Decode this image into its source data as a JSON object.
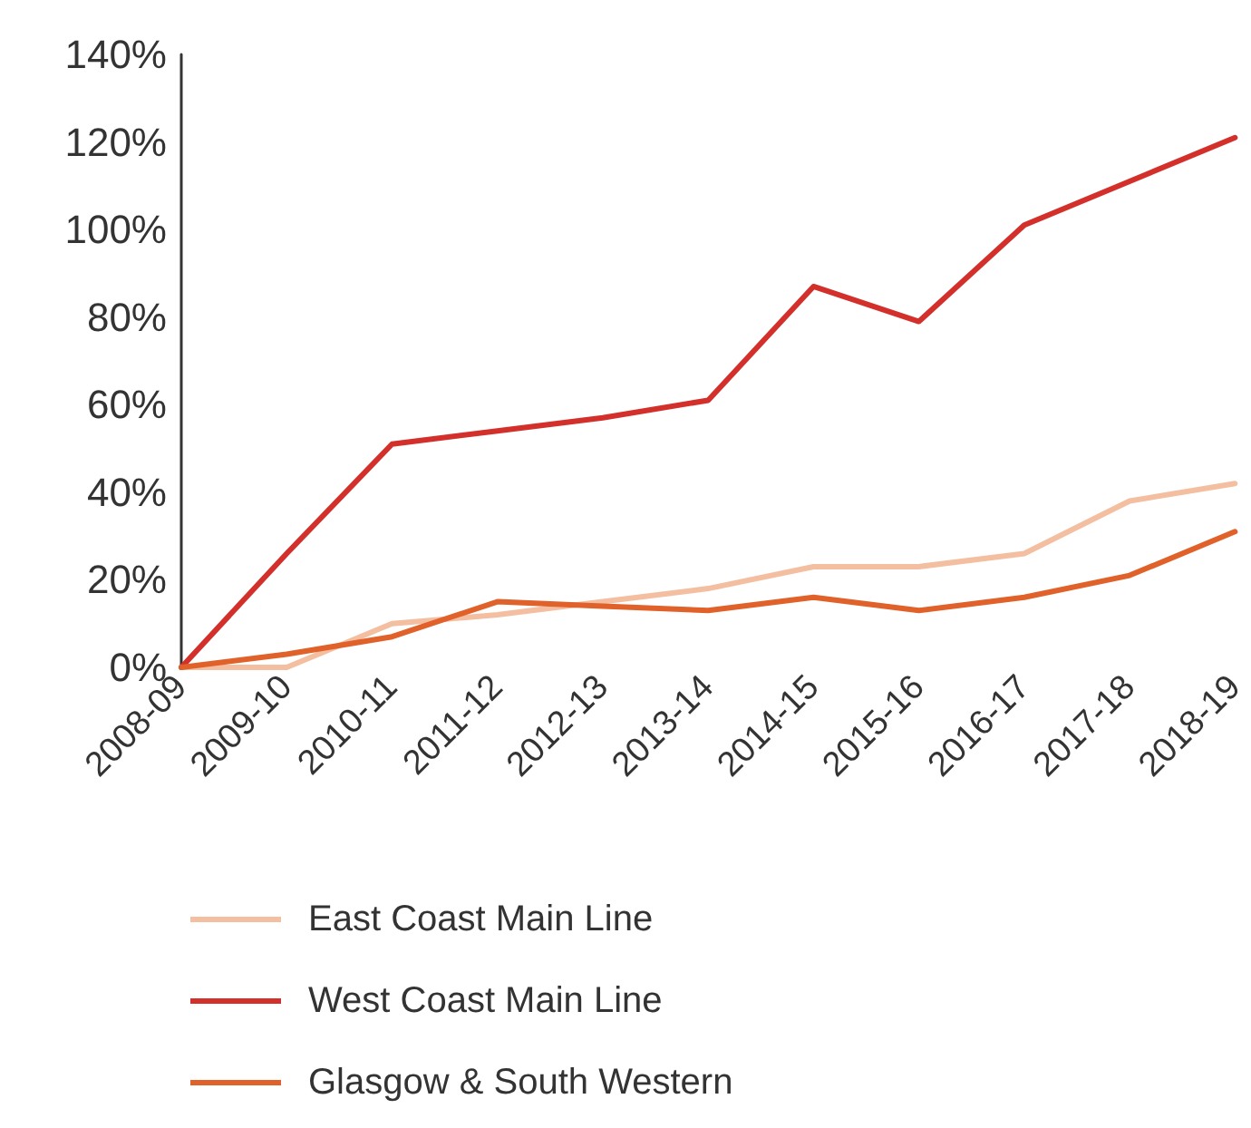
{
  "chart_data": {
    "type": "line",
    "categories": [
      "2008-09",
      "2009-10",
      "2010-11",
      "2011-12",
      "2012-13",
      "2013-14",
      "2014-15",
      "2015-16",
      "2016-17",
      "2017-18",
      "2018-19"
    ],
    "series": [
      {
        "name": "East Coast Main Line",
        "color": "#f4bfa1",
        "values": [
          0,
          0,
          10,
          12,
          15,
          18,
          23,
          23,
          26,
          38,
          42
        ]
      },
      {
        "name": "West Coast Main Line",
        "color": "#d3302b",
        "values": [
          0,
          26,
          51,
          54,
          57,
          61,
          87,
          79,
          101,
          111,
          121
        ]
      },
      {
        "name": "Glasgow & South Western",
        "color": "#e0612a",
        "values": [
          0,
          3,
          7,
          15,
          14,
          13,
          16,
          13,
          16,
          21,
          31
        ]
      }
    ],
    "ylim": [
      0,
      140
    ],
    "yticks": [
      {
        "value": 0,
        "label": "0%"
      },
      {
        "value": 20,
        "label": "20%"
      },
      {
        "value": 40,
        "label": "40%"
      },
      {
        "value": 60,
        "label": "60%"
      },
      {
        "value": 80,
        "label": "80%"
      },
      {
        "value": 100,
        "label": "100%"
      },
      {
        "value": 120,
        "label": "120%"
      },
      {
        "value": 140,
        "label": "140%"
      }
    ],
    "grid": false,
    "legend": "bottom left",
    "marker": "none",
    "line_style": "solid"
  }
}
